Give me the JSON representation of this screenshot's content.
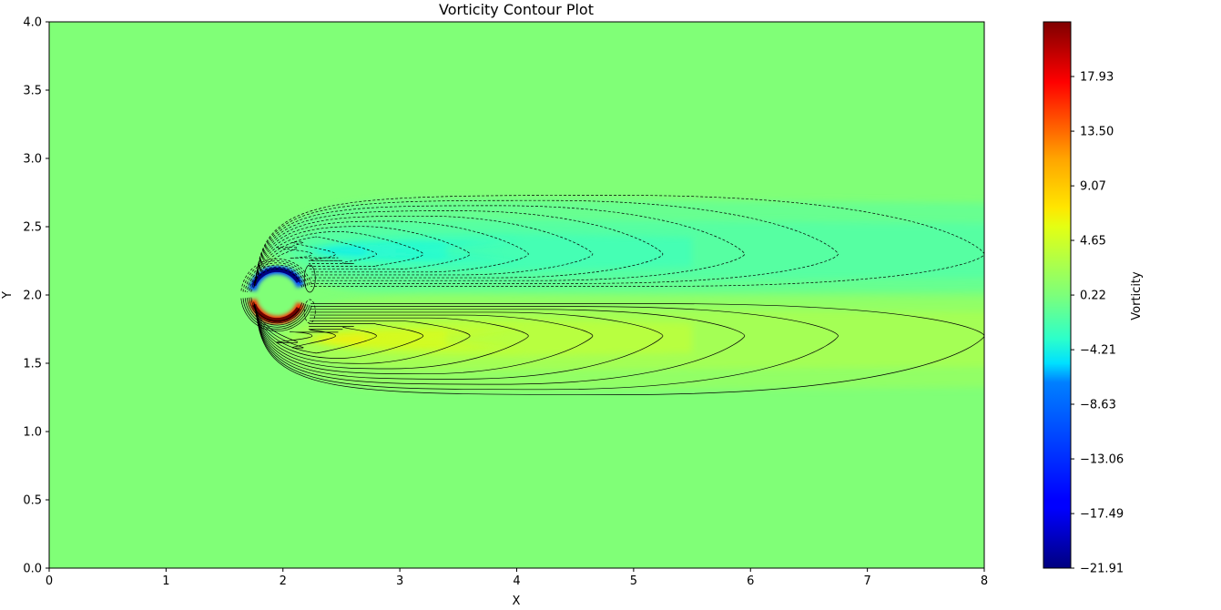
{
  "chart_data": {
    "type": "contour",
    "title": "Vorticity Contour Plot",
    "xlabel": "X",
    "ylabel": "Y",
    "xlim": [
      0,
      8
    ],
    "ylim": [
      0,
      4
    ],
    "xticks": [
      0,
      1,
      2,
      3,
      4,
      5,
      6,
      7,
      8
    ],
    "yticks": [
      0.0,
      0.5,
      1.0,
      1.5,
      2.0,
      2.5,
      3.0,
      3.5,
      4.0
    ],
    "colormap": "jet",
    "background_value_color": "#80ff77",
    "cylinder": {
      "center": [
        1.95,
        2.0
      ],
      "radius": 0.2
    },
    "wake": {
      "centerline_y": 2.0,
      "upper_band_y": 2.3,
      "lower_band_y": 1.7,
      "extends_to_x": 8
    },
    "contours": {
      "negative_linestyle": "dashed",
      "positive_linestyle": "solid",
      "color": "#000000",
      "upper_wake_tips_x": [
        2.25,
        2.45,
        2.8,
        3.2,
        3.6,
        4.1,
        4.65,
        5.25,
        5.95,
        6.75,
        8.0
      ],
      "lower_wake_tips_x": [
        2.25,
        2.45,
        2.8,
        3.2,
        3.6,
        4.1,
        4.65,
        5.25,
        5.95,
        6.75,
        8.0
      ]
    },
    "colorbar": {
      "label": "Vorticity",
      "min": -21.91,
      "max": 22.36,
      "ticks": [
        -21.91,
        -17.49,
        -13.06,
        -8.63,
        -4.21,
        0.22,
        4.65,
        9.07,
        13.5,
        17.93
      ],
      "tick_labels": [
        "−21.91",
        "−17.49",
        "−13.06",
        "−8.63",
        "−4.21",
        "0.22",
        "4.65",
        "9.07",
        "13.50",
        "17.93"
      ]
    }
  }
}
